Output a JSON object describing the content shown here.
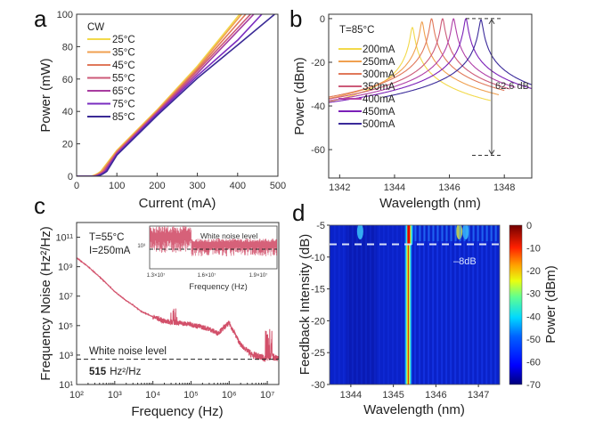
{
  "chart_data": [
    {
      "panel": "a",
      "type": "line",
      "xlabel": "Current (mA)",
      "ylabel": "Power (mW)",
      "xlim": [
        0,
        500
      ],
      "ylim": [
        0,
        100
      ],
      "xticks": [
        0,
        100,
        200,
        300,
        400,
        500
      ],
      "yticks": [
        0,
        20,
        40,
        60,
        80,
        100
      ],
      "legend_title": "CW",
      "legend_position": "top-left",
      "series": [
        {
          "name": "25°C",
          "color": "#f2d94a",
          "threshold": 35,
          "x": [
            35,
            100,
            200,
            300,
            405
          ],
          "y": [
            0,
            16,
            41,
            68,
            100
          ]
        },
        {
          "name": "35°C",
          "color": "#f0a050",
          "threshold": 37,
          "x": [
            37,
            100,
            200,
            300,
            410
          ],
          "y": [
            0,
            15.5,
            40.5,
            67,
            100
          ]
        },
        {
          "name": "45°C",
          "color": "#e0785a",
          "threshold": 40,
          "x": [
            40,
            100,
            200,
            300,
            420
          ],
          "y": [
            0,
            15,
            40,
            66,
            100
          ]
        },
        {
          "name": "55°C",
          "color": "#cc5a78",
          "threshold": 42,
          "x": [
            42,
            100,
            200,
            300,
            432
          ],
          "y": [
            0,
            14.5,
            39.5,
            65,
            100
          ]
        },
        {
          "name": "65°C",
          "color": "#a83ca0",
          "threshold": 45,
          "x": [
            45,
            100,
            200,
            300,
            440
          ],
          "y": [
            0,
            14,
            39,
            63.5,
            100
          ]
        },
        {
          "name": "75°C",
          "color": "#7a2cc0",
          "threshold": 47,
          "x": [
            47,
            100,
            200,
            300,
            400,
            460
          ],
          "y": [
            0,
            13.5,
            38.5,
            62,
            84,
            100
          ]
        },
        {
          "name": "85°C",
          "color": "#3a2a96",
          "threshold": 50,
          "x": [
            50,
            100,
            200,
            300,
            400,
            492
          ],
          "y": [
            0,
            13,
            37.5,
            60.5,
            81,
            100
          ]
        }
      ]
    },
    {
      "panel": "b",
      "type": "line",
      "xlabel": "Wavelength (nm)",
      "ylabel": "Power (dBm)",
      "xlim": [
        1341.6,
        1349
      ],
      "ylim": [
        -73,
        2
      ],
      "xticks": [
        1342,
        1344,
        1346,
        1348
      ],
      "yticks": [
        0,
        -20,
        -40,
        -60
      ],
      "annotation_title": "T=85°C",
      "smsr_label": "62.6 dB",
      "smsr_top": 0,
      "smsr_bottom": -62.6,
      "noise_floor": -68,
      "legend_position": "top-left",
      "series": [
        {
          "name": "200mA",
          "color": "#f2d94a",
          "peak_wavelength": 1344.65,
          "peak_power": -4,
          "start": 1341.6,
          "end": 1347.5
        },
        {
          "name": "250mA",
          "color": "#f0a050",
          "peak_wavelength": 1345.0,
          "peak_power": -1.5,
          "start": 1341.6,
          "end": 1347.8
        },
        {
          "name": "300mA",
          "color": "#e0785a",
          "peak_wavelength": 1345.35,
          "peak_power": 0,
          "start": 1341.6,
          "end": 1348.0
        },
        {
          "name": "350mA",
          "color": "#cc5a78",
          "peak_wavelength": 1345.75,
          "peak_power": 0,
          "start": 1341.6,
          "end": 1348.2
        },
        {
          "name": "400mA",
          "color": "#b040a8",
          "peak_wavelength": 1346.15,
          "peak_power": 0,
          "start": 1341.6,
          "end": 1348.4
        },
        {
          "name": "450mA",
          "color": "#7a20b8",
          "peak_wavelength": 1346.6,
          "peak_power": 0,
          "start": 1341.6,
          "end": 1349
        },
        {
          "name": "500mA",
          "color": "#3a2a9a",
          "peak_wavelength": 1347.15,
          "peak_power": -0.5,
          "start": 1343.6,
          "end": 1349
        }
      ]
    },
    {
      "panel": "c",
      "type": "line",
      "xscale": "log",
      "yscale": "log",
      "xlabel": "Frequency (Hz)",
      "ylabel": "Frequency Noise (Hz²/Hz)",
      "xlim": [
        100,
        20000000
      ],
      "ylim": [
        10,
        1000000000000.0
      ],
      "xticks": [
        "10²",
        "10³",
        "10⁴",
        "10⁵",
        "10⁶",
        "10⁷"
      ],
      "yticks": [
        "10¹",
        "10³",
        "10⁵",
        "10⁷",
        "10⁹",
        "10¹¹"
      ],
      "annotation_T": "T=55°C",
      "annotation_I": "I=250mA",
      "white_noise_label": "White noise level",
      "white_noise_value": "515",
      "white_noise_unit": "Hz²/Hz",
      "white_noise_level": 515,
      "color": "#d2506a",
      "series": [
        {
          "name": "frequency-noise",
          "x": [
            100,
            200,
            500,
            1000,
            2000,
            3000,
            5000,
            10000,
            20000,
            40000,
            100000,
            300000,
            500000,
            1000000,
            2000000,
            4000000,
            7000000,
            10000000,
            13000000,
            20000000
          ],
          "y": [
            4000000000.0,
            1000000000.0,
            120000000.0,
            20000000.0,
            5000000.0,
            2500000.0,
            900000.0,
            400000.0,
            200000.0,
            160000.0,
            120000.0,
            60000.0,
            30000.0,
            150000.0,
            5000.0,
            1000.0,
            700,
            600,
            800,
            600
          ]
        }
      ],
      "inset": {
        "xlabel": "Frequency (Hz)",
        "xticks": [
          "1.3×10⁷",
          "1.6×10⁷",
          "1.9×10⁷"
        ],
        "ytick": "10³",
        "label": "White noise level"
      }
    },
    {
      "panel": "d",
      "type": "heatmap",
      "xlabel": "Wavelength (nm)",
      "ylabel": "Feedback Intensity (dB)",
      "xlim": [
        1343.5,
        1347.5
      ],
      "ylim": [
        -30,
        -5
      ],
      "xticks": [
        1344,
        1345,
        1346,
        1347
      ],
      "yticks": [
        -5,
        -10,
        -15,
        -20,
        -25,
        -30
      ],
      "main_peak_wavelength": 1345.35,
      "threshold_line": -8,
      "threshold_label": "–8dB",
      "colorbar": {
        "label": "Power (dBm)",
        "range": [
          -70,
          0
        ],
        "ticks": [
          0,
          -10,
          -20,
          -30,
          -40,
          -50,
          -60,
          -70
        ]
      }
    }
  ],
  "panel_labels": [
    "a",
    "b",
    "c",
    "d"
  ]
}
